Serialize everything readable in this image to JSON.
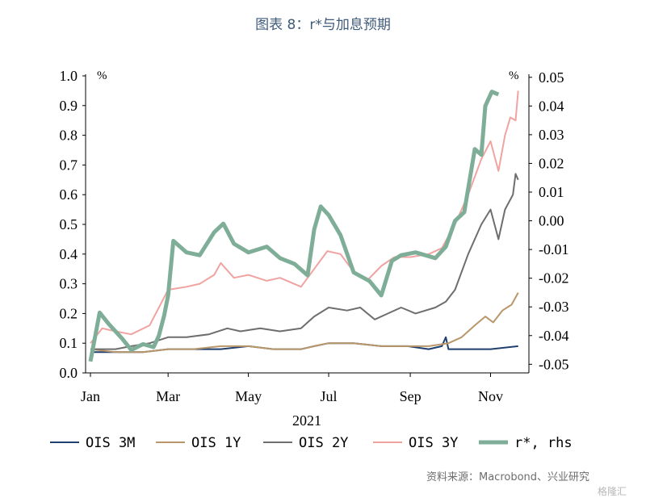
{
  "figure_title": "图表 8：r*与加息预期",
  "source_note": "资料来源：Macrobond、兴业研究",
  "watermark": "格隆汇",
  "colors": {
    "ois_3m": "#1f3f6e",
    "ois_1y": "#b9976a",
    "ois_2y": "#6e6e6e",
    "ois_3y": "#f0a3a0",
    "r_star": "#7fae98"
  },
  "chart_data": {
    "type": "line",
    "year_label": "2021",
    "left_axis": {
      "unit_label": "%",
      "ylim": [
        0,
        1
      ],
      "ticks": [
        "1.0",
        "0.9",
        "0.8",
        "0.7",
        "0.6",
        "0.5",
        "0.4",
        "0.3",
        "0.2",
        "0.1",
        "0.0"
      ]
    },
    "right_axis": {
      "unit_label": "%",
      "ylim": [
        -0.053,
        0.0505
      ],
      "ticks": [
        "0.05",
        "0.04",
        "0.03",
        "0.02",
        "0.01",
        "0.00",
        "-0.01",
        "-0.02",
        "-0.03",
        "-0.04",
        "-0.05"
      ]
    },
    "x_ticks": [
      "Jan",
      "Mar",
      "May",
      "Jul",
      "Sep",
      "Nov"
    ],
    "xlim": [
      "2021-01-01",
      "2021-11-24"
    ],
    "series": [
      {
        "name": "OIS 3M",
        "key": "ois_3m",
        "axis": "left",
        "points": [
          [
            "2021-01-01",
            0.07
          ],
          [
            "2021-01-20",
            0.07
          ],
          [
            "2021-02-10",
            0.07
          ],
          [
            "2021-03-01",
            0.08
          ],
          [
            "2021-03-20",
            0.08
          ],
          [
            "2021-04-10",
            0.08
          ],
          [
            "2021-05-01",
            0.09
          ],
          [
            "2021-05-20",
            0.08
          ],
          [
            "2021-06-10",
            0.08
          ],
          [
            "2021-06-20",
            0.09
          ],
          [
            "2021-07-01",
            0.1
          ],
          [
            "2021-07-20",
            0.1
          ],
          [
            "2021-08-10",
            0.09
          ],
          [
            "2021-08-30",
            0.09
          ],
          [
            "2021-09-15",
            0.08
          ],
          [
            "2021-09-25",
            0.09
          ],
          [
            "2021-09-28",
            0.12
          ],
          [
            "2021-09-30",
            0.08
          ],
          [
            "2021-10-15",
            0.08
          ],
          [
            "2021-11-01",
            0.08
          ],
          [
            "2021-11-22",
            0.09
          ]
        ]
      },
      {
        "name": "OIS 1Y",
        "key": "ois_1y",
        "axis": "left",
        "points": [
          [
            "2021-01-01",
            0.08
          ],
          [
            "2021-01-20",
            0.07
          ],
          [
            "2021-02-10",
            0.07
          ],
          [
            "2021-03-01",
            0.08
          ],
          [
            "2021-03-20",
            0.08
          ],
          [
            "2021-04-10",
            0.09
          ],
          [
            "2021-05-01",
            0.09
          ],
          [
            "2021-05-20",
            0.08
          ],
          [
            "2021-06-10",
            0.08
          ],
          [
            "2021-06-20",
            0.09
          ],
          [
            "2021-07-01",
            0.1
          ],
          [
            "2021-07-20",
            0.1
          ],
          [
            "2021-08-10",
            0.09
          ],
          [
            "2021-08-30",
            0.09
          ],
          [
            "2021-09-15",
            0.09
          ],
          [
            "2021-09-30",
            0.1
          ],
          [
            "2021-10-10",
            0.12
          ],
          [
            "2021-10-20",
            0.16
          ],
          [
            "2021-10-28",
            0.19
          ],
          [
            "2021-11-03",
            0.17
          ],
          [
            "2021-11-10",
            0.21
          ],
          [
            "2021-11-17",
            0.23
          ],
          [
            "2021-11-22",
            0.27
          ]
        ]
      },
      {
        "name": "OIS 2Y",
        "key": "ois_2y",
        "axis": "left",
        "points": [
          [
            "2021-01-01",
            0.08
          ],
          [
            "2021-01-20",
            0.08
          ],
          [
            "2021-02-01",
            0.09
          ],
          [
            "2021-02-15",
            0.1
          ],
          [
            "2021-03-01",
            0.12
          ],
          [
            "2021-03-15",
            0.12
          ],
          [
            "2021-04-01",
            0.13
          ],
          [
            "2021-04-15",
            0.15
          ],
          [
            "2021-04-25",
            0.14
          ],
          [
            "2021-05-10",
            0.15
          ],
          [
            "2021-05-25",
            0.14
          ],
          [
            "2021-06-10",
            0.15
          ],
          [
            "2021-06-20",
            0.19
          ],
          [
            "2021-07-01",
            0.22
          ],
          [
            "2021-07-15",
            0.21
          ],
          [
            "2021-07-25",
            0.22
          ],
          [
            "2021-08-05",
            0.18
          ],
          [
            "2021-08-15",
            0.2
          ],
          [
            "2021-08-25",
            0.22
          ],
          [
            "2021-09-05",
            0.2
          ],
          [
            "2021-09-20",
            0.22
          ],
          [
            "2021-09-28",
            0.24
          ],
          [
            "2021-10-05",
            0.28
          ],
          [
            "2021-10-15",
            0.4
          ],
          [
            "2021-10-25",
            0.5
          ],
          [
            "2021-11-01",
            0.55
          ],
          [
            "2021-11-07",
            0.45
          ],
          [
            "2021-11-12",
            0.55
          ],
          [
            "2021-11-18",
            0.6
          ],
          [
            "2021-11-20",
            0.67
          ],
          [
            "2021-11-22",
            0.65
          ]
        ]
      },
      {
        "name": "OIS 3Y",
        "key": "ois_3y",
        "axis": "left",
        "points": [
          [
            "2021-01-01",
            0.1
          ],
          [
            "2021-01-10",
            0.15
          ],
          [
            "2021-01-20",
            0.14
          ],
          [
            "2021-02-01",
            0.13
          ],
          [
            "2021-02-15",
            0.16
          ],
          [
            "2021-03-01",
            0.28
          ],
          [
            "2021-03-15",
            0.29
          ],
          [
            "2021-03-25",
            0.3
          ],
          [
            "2021-04-05",
            0.33
          ],
          [
            "2021-04-10",
            0.37
          ],
          [
            "2021-04-20",
            0.32
          ],
          [
            "2021-05-01",
            0.33
          ],
          [
            "2021-05-15",
            0.31
          ],
          [
            "2021-05-25",
            0.32
          ],
          [
            "2021-06-10",
            0.29
          ],
          [
            "2021-06-20",
            0.35
          ],
          [
            "2021-06-30",
            0.41
          ],
          [
            "2021-07-10",
            0.4
          ],
          [
            "2021-07-20",
            0.34
          ],
          [
            "2021-07-30",
            0.31
          ],
          [
            "2021-08-10",
            0.36
          ],
          [
            "2021-08-20",
            0.39
          ],
          [
            "2021-09-01",
            0.39
          ],
          [
            "2021-09-15",
            0.4
          ],
          [
            "2021-09-25",
            0.42
          ],
          [
            "2021-10-05",
            0.5
          ],
          [
            "2021-10-15",
            0.6
          ],
          [
            "2021-10-25",
            0.72
          ],
          [
            "2021-11-01",
            0.78
          ],
          [
            "2021-11-07",
            0.68
          ],
          [
            "2021-11-12",
            0.8
          ],
          [
            "2021-11-16",
            0.86
          ],
          [
            "2021-11-20",
            0.85
          ],
          [
            "2021-11-22",
            0.95
          ]
        ]
      },
      {
        "name": "r*, rhs",
        "key": "r_star",
        "axis": "right",
        "points": [
          [
            "2021-01-01",
            -0.049
          ],
          [
            "2021-01-08",
            -0.032
          ],
          [
            "2021-01-15",
            -0.036
          ],
          [
            "2021-01-25",
            -0.041
          ],
          [
            "2021-02-01",
            -0.045
          ],
          [
            "2021-02-10",
            -0.043
          ],
          [
            "2021-02-18",
            -0.044
          ],
          [
            "2021-02-22",
            -0.04
          ],
          [
            "2021-02-26",
            -0.033
          ],
          [
            "2021-03-01",
            -0.026
          ],
          [
            "2021-03-05",
            -0.007
          ],
          [
            "2021-03-15",
            -0.011
          ],
          [
            "2021-03-25",
            -0.012
          ],
          [
            "2021-04-05",
            -0.004
          ],
          [
            "2021-04-12",
            -0.001
          ],
          [
            "2021-04-20",
            -0.008
          ],
          [
            "2021-05-01",
            -0.011
          ],
          [
            "2021-05-15",
            -0.009
          ],
          [
            "2021-05-25",
            -0.013
          ],
          [
            "2021-06-05",
            -0.015
          ],
          [
            "2021-06-15",
            -0.019
          ],
          [
            "2021-06-20",
            -0.003
          ],
          [
            "2021-06-25",
            0.005
          ],
          [
            "2021-07-01",
            0.002
          ],
          [
            "2021-07-10",
            -0.005
          ],
          [
            "2021-07-20",
            -0.018
          ],
          [
            "2021-08-01",
            -0.021
          ],
          [
            "2021-08-10",
            -0.026
          ],
          [
            "2021-08-18",
            -0.014
          ],
          [
            "2021-08-25",
            -0.012
          ],
          [
            "2021-09-05",
            -0.011
          ],
          [
            "2021-09-20",
            -0.013
          ],
          [
            "2021-09-28",
            -0.009
          ],
          [
            "2021-10-05",
            0.0
          ],
          [
            "2021-10-12",
            0.003
          ],
          [
            "2021-10-20",
            0.025
          ],
          [
            "2021-10-25",
            0.023
          ],
          [
            "2021-10-28",
            0.04
          ],
          [
            "2021-11-02",
            0.045
          ],
          [
            "2021-11-07",
            0.044
          ]
        ]
      }
    ]
  }
}
